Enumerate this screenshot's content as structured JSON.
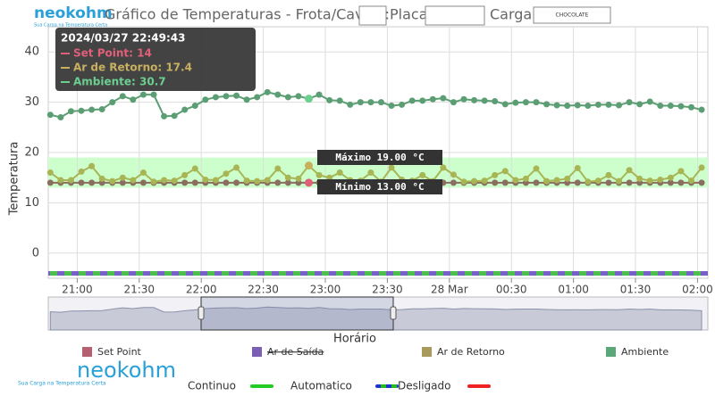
{
  "header": {
    "logo": "neokohm",
    "tagline": "Sua Carga na Temperatura Certa",
    "title": "Gráfico de Temperaturas - Frota/Cavalo:",
    "plate_label": "Placa:",
    "cargo_label": "Carga:",
    "cargo_value": "CHOCOLATE"
  },
  "chart_data": {
    "type": "line",
    "ylabel": "Temperatura",
    "xlabel": "Horário",
    "x": [
      "20:47",
      "20:52",
      "20:57",
      "21:02",
      "21:07",
      "21:12",
      "21:17",
      "21:22",
      "21:27",
      "21:32",
      "21:37",
      "21:42",
      "21:47",
      "21:52",
      "21:57",
      "22:02",
      "22:07",
      "22:12",
      "22:17",
      "22:22",
      "22:27",
      "22:32",
      "22:37",
      "22:42",
      "22:47",
      "22:52",
      "22:57",
      "23:02",
      "23:07",
      "23:12",
      "23:17",
      "23:22",
      "23:27",
      "23:32",
      "23:37",
      "23:42",
      "23:47",
      "23:52",
      "23:57",
      "00:02",
      "00:07",
      "00:12",
      "00:17",
      "00:22",
      "00:27",
      "00:32",
      "00:37",
      "00:42",
      "00:47",
      "00:52",
      "00:57",
      "01:02",
      "01:07",
      "01:12",
      "01:17",
      "01:22",
      "01:27",
      "01:32",
      "01:37",
      "01:42",
      "01:47",
      "01:52",
      "01:57",
      "02:02"
    ],
    "series": [
      {
        "name": "Set Point",
        "color": "#b5606e",
        "line": "#8a6e60",
        "values": [
          14,
          14,
          14,
          14,
          14,
          14,
          14,
          14,
          14,
          14,
          14,
          14,
          14,
          14,
          14,
          14,
          14,
          14,
          14,
          14,
          14,
          14,
          14,
          14,
          14,
          14,
          14,
          14,
          14,
          14,
          14,
          14,
          14,
          14,
          14,
          14,
          14,
          14,
          14,
          14,
          14,
          14,
          14,
          14,
          14,
          14,
          14,
          14,
          14,
          14,
          14,
          14,
          14,
          14,
          14,
          14,
          14,
          14,
          14,
          14,
          14,
          14,
          14,
          14
        ]
      },
      {
        "name": "Ar de Retorno",
        "color": "#a89a5a",
        "line": "#a8b554",
        "values": [
          16,
          14.5,
          14.5,
          16.2,
          17.3,
          14.8,
          14.3,
          15,
          14.5,
          16,
          14.2,
          14.5,
          14.4,
          15.5,
          16.8,
          14.6,
          14.5,
          15.8,
          17,
          14.4,
          14.3,
          14.5,
          16.8,
          15,
          14.8,
          17.4,
          15.5,
          15,
          16,
          14.5,
          14.4,
          16,
          14.2,
          17,
          14.6,
          14.4,
          15.5,
          14.3,
          17,
          15.6,
          14.2,
          14.3,
          14.4,
          15.5,
          16.3,
          14.5,
          14.8,
          16.8,
          14.3,
          14.5,
          14.8,
          16.9,
          14.2,
          14.4,
          15.5,
          14.3,
          16.5,
          14.8,
          14.4,
          14.6,
          15,
          16.3,
          14.4,
          17
        ]
      },
      {
        "name": "Ambiente",
        "color": "#5aa87a",
        "line": "#5c9e74",
        "values": [
          27.5,
          27,
          28.2,
          28.3,
          28.5,
          28.6,
          30,
          31.2,
          30.5,
          31.5,
          31.5,
          27.2,
          27.3,
          28.5,
          29.3,
          30.5,
          31,
          31.2,
          31.3,
          30.5,
          31,
          32,
          31.5,
          31,
          31.2,
          30.7,
          31.5,
          30.4,
          30.3,
          29.5,
          30,
          30,
          30,
          29.3,
          29.5,
          30.3,
          30.3,
          30.6,
          30.8,
          30,
          30.6,
          30.4,
          30.3,
          30.2,
          29.6,
          29.9,
          30,
          30,
          29.6,
          29.4,
          29.3,
          29.4,
          29.3,
          29.5,
          29.5,
          29.4,
          30,
          29.6,
          30.1,
          29.3,
          29.3,
          29.2,
          29,
          28.5
        ]
      }
    ],
    "hidden_series": [
      {
        "name": "Ar de Saída",
        "color": "#7b5fb5"
      }
    ],
    "xlim": [
      "20:46",
      "02:05"
    ],
    "xticks": [
      "21:00",
      "21:30",
      "22:00",
      "22:30",
      "23:00",
      "23:30",
      {
        "value": "00:00",
        "label": "28 Mar"
      },
      "00:30",
      "01:00",
      "01:30",
      "02:00"
    ],
    "ylim": [
      -5,
      45
    ],
    "yticks": [
      0,
      10,
      20,
      30,
      40
    ],
    "grid": true,
    "limits": {
      "max": {
        "value": 19,
        "label": "Máximo 19.00 °C"
      },
      "min": {
        "value": 13,
        "label": "Mínimo 13.00 °C"
      },
      "color": "#ccffcc"
    },
    "tooltip": {
      "index": 25,
      "time": "2024/03/27 22:49:43",
      "items": [
        {
          "label": "Set Point: 14",
          "value": 14,
          "color": "#e0607a"
        },
        {
          "label": "Ar de Retorno: 17.4",
          "value": 17.4,
          "color": "#c8b060"
        },
        {
          "label": "Ambiente: 30.7",
          "value": 30.7,
          "color": "#6ccf90"
        }
      ]
    },
    "statuses": [
      {
        "name": "Continuo",
        "color": "#22cc22"
      },
      {
        "name": "Automatico",
        "color": "#3344cc"
      },
      {
        "name": "Desligado",
        "color": "#ee2222"
      }
    ]
  }
}
